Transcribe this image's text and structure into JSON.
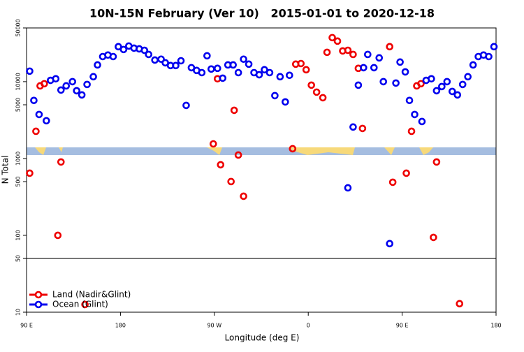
{
  "chart_data": {
    "type": "scatter",
    "title": "10N-15N February (Ver 10)   2015-01-01 to 2020-12-18",
    "x_label": "Longitude (deg E)",
    "y_label": "N Total",
    "xlim": [
      90,
      540
    ],
    "xticks": [
      {
        "value": 90,
        "label": "90 E"
      },
      180,
      {
        "value": 270,
        "label": "90 W"
      },
      {
        "value": 360,
        "label": "0"
      },
      {
        "value": 450,
        "label": "90 E"
      },
      {
        "value": 540,
        "label": "180"
      }
    ],
    "ylim": [
      10,
      50000
    ],
    "yticks": [
      10,
      50,
      100,
      500,
      1000,
      5000,
      10000,
      50000
    ],
    "log_y": true,
    "reference_line": 50,
    "legend": "bottom-left",
    "series": [
      {
        "name": "Land (Nadir&Glint)",
        "color": "#ee0000",
        "x": [
          93,
          99,
          103,
          107,
          120,
          123,
          146,
          269,
          273,
          276,
          286,
          289,
          293,
          298,
          345,
          348,
          353,
          358,
          363,
          368,
          374,
          378,
          383,
          388,
          393,
          398,
          403,
          408,
          412,
          438,
          441,
          454,
          459,
          464,
          468,
          480,
          483,
          505
        ],
        "values": [
          644,
          2260,
          8810,
          9400,
          100,
          901,
          12.6,
          1550,
          10900,
          829,
          501,
          4240,
          1110,
          323,
          1340,
          16900,
          17200,
          14300,
          9010,
          7310,
          6180,
          24100,
          37400,
          33700,
          25100,
          25600,
          22600,
          14900,
          2460,
          28500,
          491,
          644,
          2260,
          8810,
          9400,
          94,
          901,
          12.9
        ]
      },
      {
        "name": "Ocean (Glint)",
        "color": "#0000ee",
        "x": [
          93,
          97,
          102,
          109,
          113,
          118,
          123,
          128,
          134,
          138,
          143,
          148,
          154,
          158,
          163,
          168,
          173,
          178,
          183,
          188,
          193,
          198,
          203,
          207,
          213,
          219,
          223,
          228,
          233,
          238,
          243,
          248,
          253,
          258,
          263,
          267,
          273,
          278,
          283,
          288,
          293,
          298,
          303,
          308,
          313,
          318,
          323,
          328,
          333,
          338,
          342,
          398,
          403,
          408,
          413,
          417,
          423,
          428,
          432,
          438,
          444,
          448,
          453,
          457,
          462,
          469,
          473,
          478,
          483,
          488,
          493,
          498,
          503,
          508,
          513,
          518,
          523,
          528,
          533,
          538
        ],
        "values": [
          13700,
          5700,
          3740,
          3100,
          10400,
          10900,
          7780,
          8810,
          10000,
          7620,
          6720,
          9200,
          11600,
          16500,
          21200,
          22200,
          21200,
          28500,
          26200,
          29100,
          27300,
          26700,
          25600,
          22600,
          19100,
          19600,
          17600,
          16200,
          16200,
          18700,
          4910,
          15200,
          14000,
          13100,
          21700,
          14600,
          14900,
          11100,
          16500,
          16500,
          13100,
          19600,
          16900,
          13100,
          12300,
          14300,
          13100,
          6580,
          11600,
          5450,
          12100,
          415,
          2570,
          9010,
          15200,
          22600,
          15200,
          20400,
          10000,
          78,
          9590,
          18000,
          13400,
          5700,
          3740,
          3030,
          10400,
          10900,
          7620,
          8640,
          10000,
          7460,
          6720,
          9200,
          11600,
          16500,
          21200,
          22200,
          21200,
          28500
        ]
      }
    ]
  }
}
